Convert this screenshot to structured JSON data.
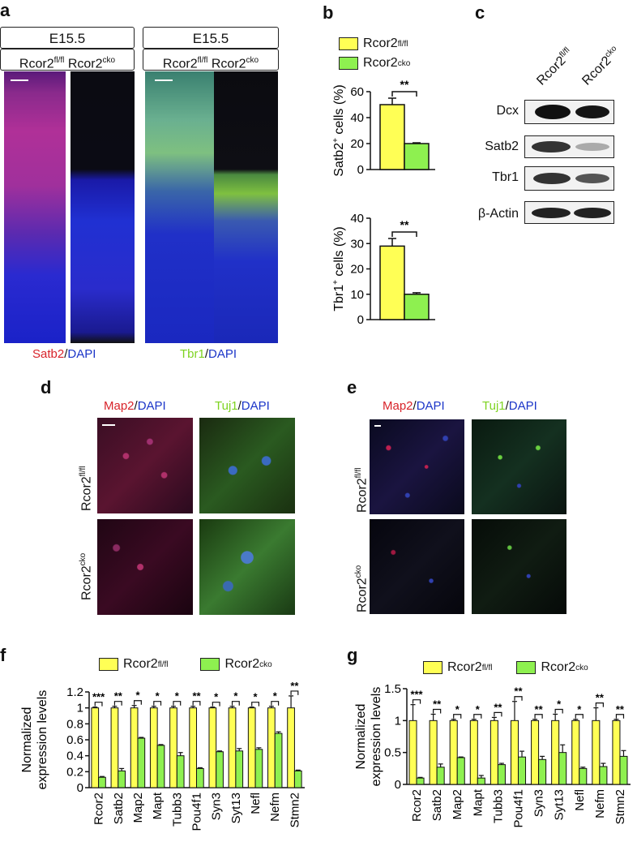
{
  "panel_letters": {
    "a": "a",
    "b": "b",
    "c": "c",
    "d": "d",
    "e": "e",
    "f": "f",
    "g": "g"
  },
  "panel_a": {
    "age_left": "E15.5",
    "age_right": "E15.5",
    "geno_left_a": "Rcor2",
    "geno_left_a_sup": "fl/fl",
    "geno_left_b": "Rcor2",
    "geno_left_b_sup": "cko",
    "geno_right_a": "Rcor2",
    "geno_right_a_sup": "fl/fl",
    "geno_right_b": "Rcor2",
    "geno_right_b_sup": "cko",
    "stain_left_1": "Satb2",
    "stain_left_sep": "/",
    "stain_left_2": "DAPI",
    "stain_right_1": "Tbr1",
    "stain_right_sep": "/",
    "stain_right_2": "DAPI"
  },
  "panel_b": {
    "legend": [
      {
        "name": "Rcor2",
        "sup": "fl/fl",
        "color": "#ffff55"
      },
      {
        "name": "Rcor2",
        "sup": "cko",
        "color": "#8ef050"
      }
    ],
    "sig": "**"
  },
  "panel_c": {
    "col1": "Rcor2",
    "col1_sup": "fl/fl",
    "col2": "Rcor2",
    "col2_sup": "cko",
    "rows": [
      "Dcx",
      "Satb2",
      "Tbr1",
      "β-Actin"
    ]
  },
  "panel_d": {
    "col1_a": "Map2",
    "col1_sep": "/",
    "col1_b": "DAPI",
    "col2_a": "Tuj1",
    "col2_sep": "/",
    "col2_b": "DAPI",
    "row1": "Rcor2",
    "row1_sup": "fl/fl",
    "row2": "Rcor2",
    "row2_sup": "cko"
  },
  "panel_e": {
    "col1_a": "Map2",
    "col1_sep": "/",
    "col1_b": "DAPI",
    "col2_a": "Tuj1",
    "col2_sep": "/",
    "col2_b": "DAPI",
    "row1": "Rcor2",
    "row1_sup": "fl/fl",
    "row2": "Rcor2",
    "row2_sup": "cko"
  },
  "panel_fg_legend": [
    {
      "name": "Rcor2",
      "sup": "fl/fl",
      "color": "#ffff55"
    },
    {
      "name": "Rcor2",
      "sup": "cko",
      "color": "#8ef050"
    }
  ],
  "colors": {
    "flfl": "#ffff55",
    "cko": "#8ef050",
    "axis": "#111111"
  },
  "chart_data": [
    {
      "id": "b_top",
      "type": "bar",
      "categories": [
        "Rcor2fl/fl",
        "Rcor2cko"
      ],
      "values": [
        50,
        20
      ],
      "errors": [
        5,
        0.6
      ],
      "ylabel": "Satb2",
      "ylabel_sup": "+",
      "ylabel_rest": " cells (%)",
      "ylim": [
        0,
        60
      ],
      "yticks": [
        "0",
        "20",
        "40",
        "60"
      ],
      "sig": "**"
    },
    {
      "id": "b_bottom",
      "type": "bar",
      "categories": [
        "Rcor2fl/fl",
        "Rcor2cko"
      ],
      "values": [
        29,
        10
      ],
      "errors": [
        3,
        0.6
      ],
      "ylabel": "Tbr1",
      "ylabel_sup": "+",
      "ylabel_rest": " cells (%)",
      "ylim": [
        0,
        40
      ],
      "yticks": [
        "0",
        "10",
        "20",
        "30",
        "40"
      ],
      "sig": "**"
    },
    {
      "id": "f",
      "type": "bar",
      "categories": [
        "Rcor2",
        "Satb2",
        "Map2",
        "Mapt",
        "Tubb3",
        "Pou4f1",
        "Syn3",
        "Syt13",
        "Nefl",
        "Nefm",
        "Stmn2"
      ],
      "series": [
        {
          "name": "Rcor2fl/fl",
          "values": [
            1,
            1,
            1,
            1,
            1,
            1,
            1,
            1,
            1,
            1,
            1
          ],
          "errors": [
            0.01,
            0.02,
            0.03,
            0.02,
            0.02,
            0.02,
            0.01,
            0.02,
            0.01,
            0.02,
            0.15
          ]
        },
        {
          "name": "Rcor2cko",
          "values": [
            0.13,
            0.21,
            0.62,
            0.53,
            0.4,
            0.24,
            0.45,
            0.46,
            0.48,
            0.68,
            0.21
          ],
          "errors": [
            0.01,
            0.03,
            0.01,
            0.01,
            0.04,
            0.01,
            0.01,
            0.03,
            0.02,
            0.02,
            0.01
          ]
        }
      ],
      "sig": [
        "***",
        "**",
        "*",
        "*",
        "*",
        "**",
        "*",
        "*",
        "*",
        "*",
        "**"
      ],
      "ylabel_1": "Normalized",
      "ylabel_2": "expression levels",
      "ylim": [
        0,
        1.2
      ],
      "yticks": [
        "0",
        "0.2",
        "0.4",
        "0.6",
        "0.8",
        "1",
        "1.2"
      ]
    },
    {
      "id": "g",
      "type": "bar",
      "categories": [
        "Rcor2",
        "Satb2",
        "Map2",
        "Mapt",
        "Tubb3",
        "Pou4f1",
        "Syn3",
        "Syt13",
        "Nefl",
        "Nefm",
        "Stmn2"
      ],
      "series": [
        {
          "name": "Rcor2fl/fl",
          "values": [
            1,
            1,
            1,
            1,
            1,
            1,
            1,
            1,
            1,
            1,
            1
          ],
          "errors": [
            0.25,
            0.1,
            0.02,
            0.02,
            0.05,
            0.3,
            0.02,
            0.1,
            0.02,
            0.2,
            0.02
          ]
        },
        {
          "name": "Rcor2cko",
          "values": [
            0.1,
            0.27,
            0.42,
            0.1,
            0.31,
            0.43,
            0.39,
            0.5,
            0.25,
            0.28,
            0.44
          ],
          "errors": [
            0.01,
            0.05,
            0.01,
            0.04,
            0.02,
            0.09,
            0.05,
            0.12,
            0.02,
            0.05,
            0.09
          ]
        }
      ],
      "sig": [
        "***",
        "**",
        "*",
        "*",
        "**",
        "**",
        "**",
        "*",
        "*",
        "**",
        "**"
      ],
      "ylabel_1": "Normalized",
      "ylabel_2": "expression levels",
      "ylim": [
        0,
        1.5
      ],
      "yticks": [
        "0",
        "0.5",
        "1",
        "1.5"
      ]
    }
  ]
}
